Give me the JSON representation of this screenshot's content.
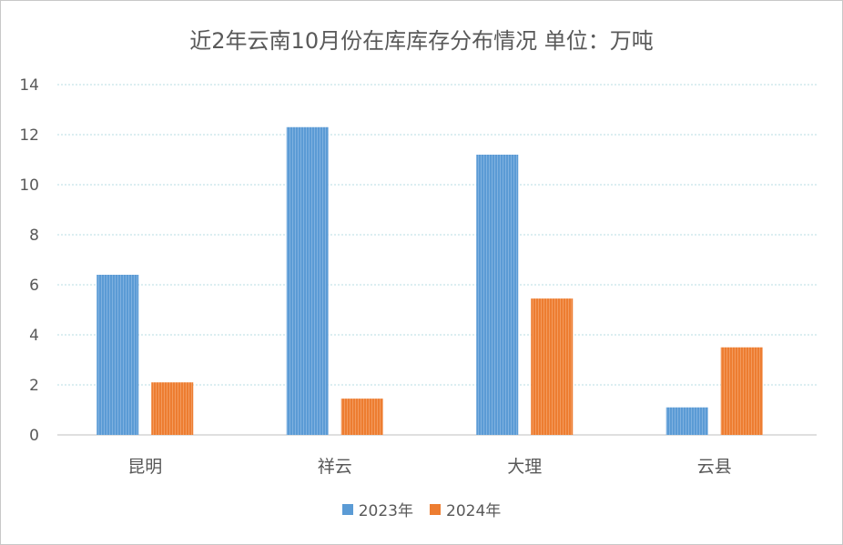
{
  "chart_data": {
    "type": "bar",
    "title": "近2年云南10月份在库库存分布情况  单位：万吨",
    "categories": [
      "昆明",
      "祥云",
      "大理",
      "云县"
    ],
    "series": [
      {
        "name": "2023年",
        "values": [
          6.4,
          12.3,
          11.2,
          1.1
        ],
        "color": "#5b9bd5"
      },
      {
        "name": "2024年",
        "values": [
          2.1,
          1.45,
          5.45,
          3.5
        ],
        "color": "#ed7d31"
      }
    ],
    "ylim": [
      0,
      14
    ],
    "yticks": [
      "0",
      "2",
      "4",
      "6",
      "8",
      "10",
      "12",
      "14"
    ],
    "grid": true,
    "legend_position": "bottom"
  }
}
